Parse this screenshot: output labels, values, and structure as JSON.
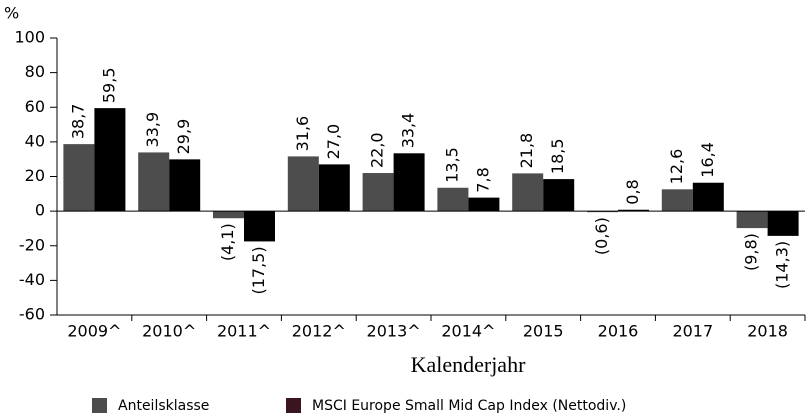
{
  "chart_data": {
    "type": "bar",
    "y_unit": "%",
    "x_label": "Kalenderjahr",
    "categories": [
      "2009^",
      "2010^",
      "2011^",
      "2012^",
      "2013^",
      "2014^",
      "2015",
      "2016",
      "2017",
      "2018"
    ],
    "series": [
      {
        "name": "Anteilsklasse",
        "color": "#4d4d4d",
        "legend_color": "#4d4d4d",
        "values": [
          38.7,
          33.9,
          -4.1,
          31.6,
          22.0,
          13.5,
          21.8,
          -0.6,
          12.6,
          -9.8
        ],
        "value_labels": [
          "38,7",
          "33,9",
          "(4,1)",
          "31,6",
          "22,0",
          "13,5",
          "21,8",
          "(0,6)",
          "12,6",
          "(9,8)"
        ]
      },
      {
        "name": "MSCI Europe Small Mid Cap Index (Nettodiv.)",
        "color": "#000000",
        "legend_color": "#3a1520",
        "values": [
          59.5,
          29.9,
          -17.5,
          27.0,
          33.4,
          7.8,
          18.5,
          0.8,
          16.4,
          -14.3
        ],
        "value_labels": [
          "59,5",
          "29,9",
          "(17,5)",
          "27,0",
          "33,4",
          "7,8",
          "18,5",
          "0,8",
          "16,4",
          "(14,3)"
        ]
      }
    ],
    "ylim": [
      -60,
      100
    ],
    "yticks": [
      -60,
      -40,
      -20,
      0,
      20,
      40,
      60,
      80,
      100
    ]
  }
}
